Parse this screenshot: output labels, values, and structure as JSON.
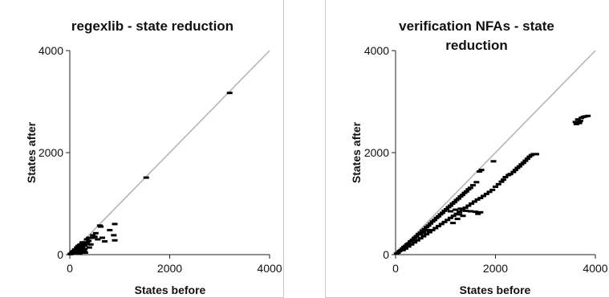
{
  "chart_data": [
    {
      "type": "scatter",
      "title": "regexlib - state reduction",
      "title_lines": [
        "regexlib - state reduction"
      ],
      "xlabel": "States before",
      "ylabel": "States after",
      "xlim": [
        0,
        4000
      ],
      "ylim": [
        0,
        4000
      ],
      "x_ticks": [
        "0",
        "2000",
        "4000"
      ],
      "y_ticks": [
        "0",
        "2000",
        "4000"
      ],
      "grid": false,
      "legend": "none",
      "reference_line": {
        "from": [
          0,
          0
        ],
        "to": [
          4000,
          4000
        ],
        "color": "#b5b5b5"
      },
      "marker_color": "#000000",
      "points": [
        [
          3200,
          3170
        ],
        [
          1530,
          1510
        ],
        [
          900,
          600
        ],
        [
          880,
          380
        ],
        [
          900,
          280
        ],
        [
          800,
          480
        ],
        [
          600,
          570
        ],
        [
          620,
          550
        ],
        [
          560,
          300
        ],
        [
          500,
          350
        ],
        [
          450,
          330
        ],
        [
          420,
          200
        ],
        [
          390,
          140
        ],
        [
          380,
          270
        ],
        [
          350,
          240
        ],
        [
          330,
          210
        ],
        [
          310,
          40
        ],
        [
          300,
          180
        ],
        [
          300,
          110
        ],
        [
          290,
          60
        ],
        [
          280,
          220
        ],
        [
          270,
          80
        ],
        [
          260,
          160
        ],
        [
          250,
          240
        ],
        [
          240,
          130
        ],
        [
          230,
          100
        ],
        [
          220,
          200
        ],
        [
          210,
          70
        ],
        [
          200,
          190
        ],
        [
          190,
          150
        ],
        [
          180,
          60
        ],
        [
          170,
          170
        ],
        [
          160,
          120
        ],
        [
          150,
          90
        ],
        [
          140,
          140
        ],
        [
          130,
          30
        ],
        [
          120,
          100
        ],
        [
          110,
          80
        ],
        [
          100,
          100
        ],
        [
          90,
          50
        ],
        [
          80,
          70
        ],
        [
          70,
          40
        ],
        [
          60,
          60
        ],
        [
          50,
          30
        ],
        [
          40,
          35
        ],
        [
          30,
          20
        ],
        [
          20,
          15
        ],
        [
          10,
          10
        ],
        [
          460,
          380
        ],
        [
          520,
          420
        ],
        [
          650,
          330
        ],
        [
          700,
          260
        ],
        [
          380,
          330
        ],
        [
          340,
          300
        ],
        [
          260,
          40
        ],
        [
          200,
          20
        ]
      ]
    },
    {
      "type": "scatter",
      "title": "verification NFAs - state reduction",
      "title_lines": [
        "verification NFAs - state",
        "reduction"
      ],
      "xlabel": "States before",
      "ylabel": "States after",
      "xlim": [
        0,
        4000
      ],
      "ylim": [
        0,
        4000
      ],
      "x_ticks": [
        "0",
        "2000",
        "4000"
      ],
      "y_ticks": [
        "0",
        "2000",
        "4000"
      ],
      "grid": false,
      "legend": "none",
      "reference_line": {
        "from": [
          0,
          0
        ],
        "to": [
          4000,
          4000
        ],
        "color": "#b5b5b5"
      },
      "marker_color": "#000000",
      "points": [
        [
          20,
          20
        ],
        [
          50,
          40
        ],
        [
          80,
          70
        ],
        [
          110,
          90
        ],
        [
          140,
          120
        ],
        [
          170,
          150
        ],
        [
          200,
          170
        ],
        [
          230,
          200
        ],
        [
          260,
          220
        ],
        [
          300,
          260
        ],
        [
          340,
          290
        ],
        [
          380,
          330
        ],
        [
          420,
          360
        ],
        [
          460,
          400
        ],
        [
          500,
          430
        ],
        [
          540,
          470
        ],
        [
          580,
          500
        ],
        [
          620,
          540
        ],
        [
          660,
          570
        ],
        [
          700,
          610
        ],
        [
          740,
          650
        ],
        [
          780,
          680
        ],
        [
          820,
          720
        ],
        [
          860,
          750
        ],
        [
          900,
          790
        ],
        [
          940,
          820
        ],
        [
          980,
          860
        ],
        [
          1020,
          890
        ],
        [
          1060,
          930
        ],
        [
          1100,
          960
        ],
        [
          1140,
          1000
        ],
        [
          1180,
          1030
        ],
        [
          1220,
          1070
        ],
        [
          1260,
          1100
        ],
        [
          1300,
          1140
        ],
        [
          1340,
          1170
        ],
        [
          1380,
          1210
        ],
        [
          1420,
          1240
        ],
        [
          1460,
          1280
        ],
        [
          1500,
          1310
        ],
        [
          1550,
          1360
        ],
        [
          1620,
          1420
        ],
        [
          1680,
          1630
        ],
        [
          1720,
          1660
        ],
        [
          1960,
          1830
        ],
        [
          150,
          90
        ],
        [
          200,
          120
        ],
        [
          260,
          160
        ],
        [
          320,
          200
        ],
        [
          380,
          240
        ],
        [
          440,
          280
        ],
        [
          500,
          320
        ],
        [
          560,
          360
        ],
        [
          620,
          400
        ],
        [
          680,
          440
        ],
        [
          740,
          480
        ],
        [
          800,
          520
        ],
        [
          860,
          560
        ],
        [
          920,
          600
        ],
        [
          980,
          640
        ],
        [
          1040,
          680
        ],
        [
          1100,
          720
        ],
        [
          1160,
          760
        ],
        [
          1220,
          800
        ],
        [
          1280,
          840
        ],
        [
          1340,
          880
        ],
        [
          1400,
          920
        ],
        [
          1460,
          960
        ],
        [
          1520,
          1000
        ],
        [
          1580,
          1040
        ],
        [
          1640,
          1080
        ],
        [
          1700,
          1110
        ],
        [
          1760,
          1150
        ],
        [
          1820,
          1190
        ],
        [
          1880,
          1230
        ],
        [
          1940,
          1270
        ],
        [
          2000,
          1330
        ],
        [
          2060,
          1380
        ],
        [
          2120,
          1430
        ],
        [
          2160,
          1470
        ],
        [
          2200,
          1520
        ],
        [
          2260,
          1560
        ],
        [
          2300,
          1580
        ],
        [
          2360,
          1620
        ],
        [
          2400,
          1660
        ],
        [
          2440,
          1700
        ],
        [
          2480,
          1730
        ],
        [
          2520,
          1770
        ],
        [
          2560,
          1800
        ],
        [
          2600,
          1840
        ],
        [
          2640,
          1880
        ],
        [
          2680,
          1920
        ],
        [
          2720,
          1950
        ],
        [
          2760,
          1970
        ],
        [
          2820,
          1970
        ],
        [
          1100,
          850
        ],
        [
          1200,
          880
        ],
        [
          1300,
          900
        ],
        [
          1400,
          860
        ],
        [
          1500,
          850
        ],
        [
          1600,
          840
        ],
        [
          1700,
          830
        ],
        [
          1650,
          800
        ],
        [
          1280,
          790
        ],
        [
          1350,
          760
        ],
        [
          1240,
          700
        ],
        [
          1150,
          620
        ],
        [
          650,
          480
        ],
        [
          560,
          440
        ],
        [
          500,
          400
        ],
        [
          3600,
          2600
        ],
        [
          3650,
          2650
        ],
        [
          3700,
          2620
        ],
        [
          3720,
          2680
        ],
        [
          3760,
          2700
        ],
        [
          3800,
          2710
        ],
        [
          3850,
          2720
        ],
        [
          3680,
          2580
        ],
        [
          3620,
          2560
        ]
      ]
    }
  ]
}
